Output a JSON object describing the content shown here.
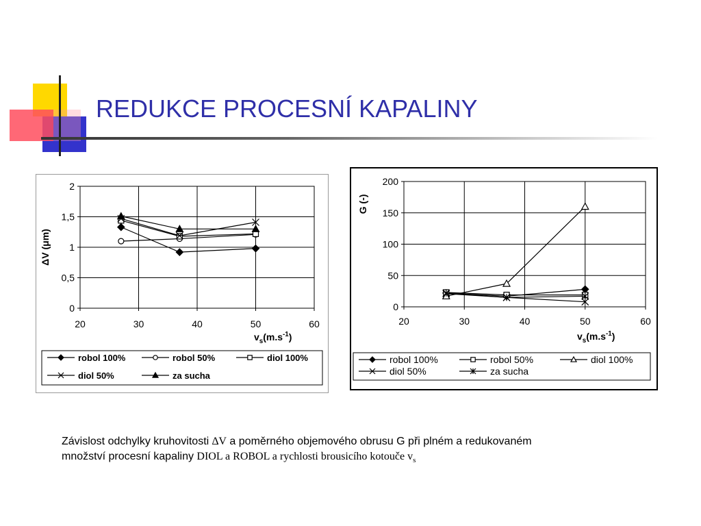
{
  "title": "REDUKCE PROCESNÍ KAPALINY",
  "colors": {
    "title": "#2f2fa8",
    "logo_yellow": "#ffd800",
    "logo_blue": "#3333cc",
    "logo_red": "#ff4d5e"
  },
  "chart_data": [
    {
      "type": "line",
      "ylabel": "ΔV (μm)",
      "xlabel_main": "v",
      "xlabel_sub": "s",
      "xlabel_tail": "(m.s",
      "xlabel_sup": "-1",
      "xlabel_close": ")",
      "xlim": [
        20,
        60
      ],
      "ylim": [
        0,
        2
      ],
      "xticks": [
        20,
        30,
        40,
        50,
        60
      ],
      "yticks": [
        0,
        0.5,
        1,
        1.5,
        2
      ],
      "xtick_labels": [
        "20",
        "30",
        "40",
        "50",
        "60"
      ],
      "ytick_labels": [
        "0",
        "0,5",
        "1",
        "1,5",
        "2"
      ],
      "grid": true,
      "legend_position": "bottom",
      "series": [
        {
          "name": "robol 100%",
          "marker": "diamond-filled",
          "x": [
            27,
            37,
            50
          ],
          "y": [
            1.33,
            0.92,
            0.98
          ]
        },
        {
          "name": "robol 50%",
          "marker": "circle-open",
          "x": [
            27,
            37,
            50
          ],
          "y": [
            1.1,
            1.14,
            1.21
          ]
        },
        {
          "name": "diol 100%",
          "marker": "square-open",
          "x": [
            27,
            37,
            50
          ],
          "y": [
            1.44,
            1.18,
            1.22
          ]
        },
        {
          "name": "diol 50%",
          "marker": "x",
          "x": [
            27,
            37,
            50
          ],
          "y": [
            1.47,
            1.19,
            1.41
          ]
        },
        {
          "name": "za sucha",
          "marker": "triangle-filled",
          "x": [
            27,
            37,
            50
          ],
          "y": [
            1.51,
            1.3,
            1.3
          ]
        }
      ]
    },
    {
      "type": "line",
      "ylabel": "G (-)",
      "xlabel_main": "v",
      "xlabel_sub": "s",
      "xlabel_tail": "(m.s",
      "xlabel_sup": "-1",
      "xlabel_close": ")",
      "xlim": [
        20,
        60
      ],
      "ylim": [
        0,
        200
      ],
      "xticks": [
        20,
        30,
        40,
        50,
        60
      ],
      "yticks": [
        0,
        50,
        100,
        150,
        200
      ],
      "xtick_labels": [
        "20",
        "30",
        "40",
        "50",
        "60"
      ],
      "ytick_labels": [
        "0",
        "50",
        "100",
        "150",
        "200"
      ],
      "grid": true,
      "legend_position": "bottom",
      "series": [
        {
          "name": "robol 100%",
          "marker": "diamond-filled",
          "x": [
            27,
            37,
            50
          ],
          "y": [
            22,
            17,
            28
          ]
        },
        {
          "name": "robol 50%",
          "marker": "square-open",
          "x": [
            27,
            37,
            50
          ],
          "y": [
            23,
            19,
            19
          ]
        },
        {
          "name": "diol 100%",
          "marker": "triangle-open",
          "x": [
            27,
            37,
            50
          ],
          "y": [
            17,
            37,
            160
          ]
        },
        {
          "name": "diol 50%",
          "marker": "x",
          "x": [
            27,
            37,
            50
          ],
          "y": [
            21,
            15,
            8
          ]
        },
        {
          "name": "za sucha",
          "marker": "star",
          "x": [
            27,
            37,
            50
          ],
          "y": [
            22,
            15,
            17
          ]
        }
      ]
    }
  ],
  "caption": {
    "line1_a": "Závislost odchylky kruhovitosti ",
    "line1_delta": "∆V",
    "line1_b": "  a poměrného objemového obrusu G při plném a redukovaném",
    "line2_a": "množství procesní kapaliny  ",
    "line2_serif": "DIOL a ROBOL a rychlosti brousicího kotouče v",
    "line2_sub": "s"
  }
}
